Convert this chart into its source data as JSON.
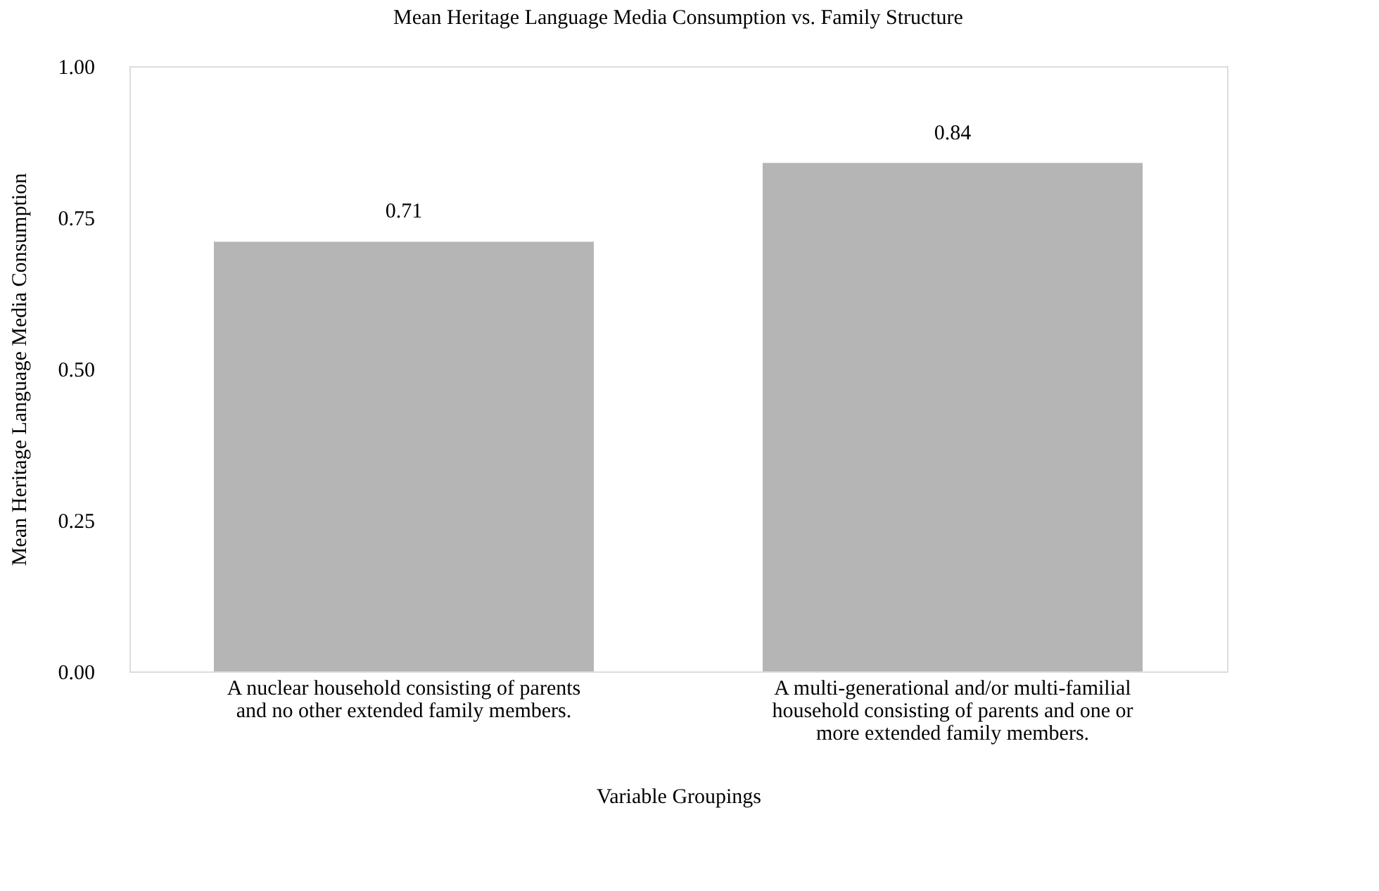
{
  "chart_data": {
    "type": "bar",
    "title": "Mean Heritage Language Media Consumption vs. Family Structure",
    "xlabel": "Variable Groupings",
    "ylabel": "Mean Heritage Language Media Consumption",
    "categories": [
      "A nuclear household consisting of parents and no other extended family members.",
      "A multi-generational and/or multi-familial household consisting of parents and one or more extended family members."
    ],
    "values": [
      0.71,
      0.84
    ],
    "color": "#b5b5b5",
    "ylim": [
      0,
      1
    ],
    "yticks": [
      {
        "value": 0,
        "label": "0.00"
      },
      {
        "value": 0.25,
        "label": "0.25"
      },
      {
        "value": 0.5,
        "label": "0.50"
      },
      {
        "value": 0.75,
        "label": "0.75"
      },
      {
        "value": 1,
        "label": "1.00"
      }
    ],
    "grid": false,
    "data_labels": true
  }
}
